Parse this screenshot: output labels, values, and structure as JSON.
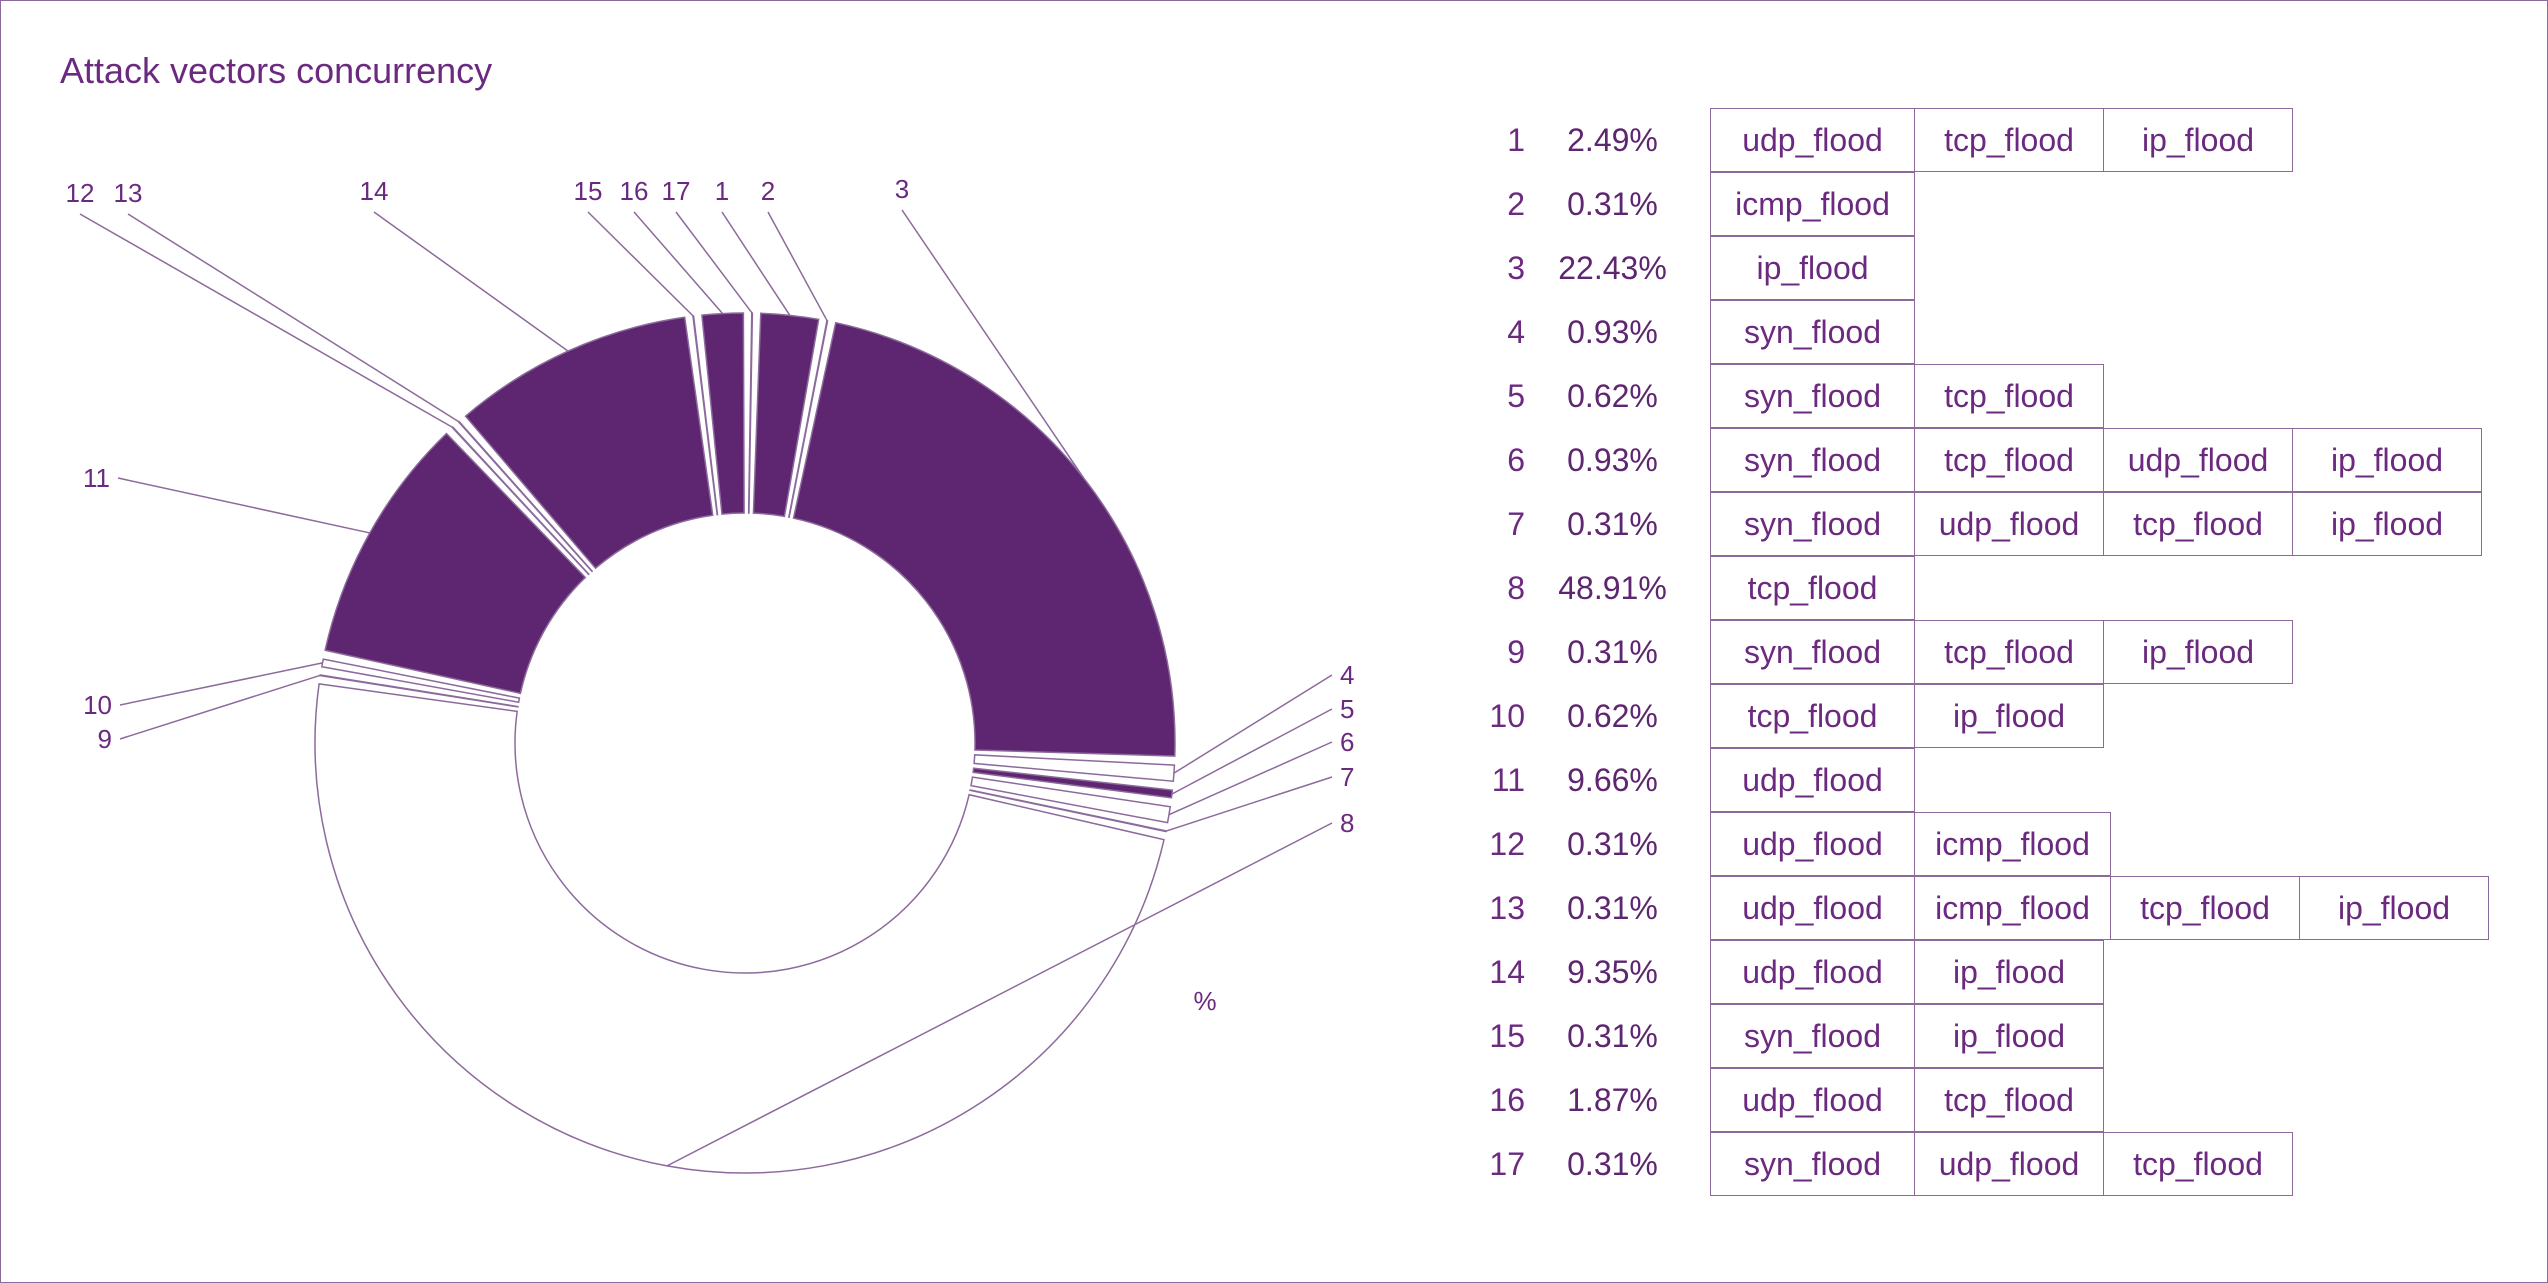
{
  "title": "Attack vectors concurrency",
  "unit_label": "%",
  "colors": {
    "fill": "#5e2570",
    "stroke": "#8c6a9c",
    "text": "#6b2a7f"
  },
  "chart_data": {
    "type": "pie",
    "title": "Attack vectors concurrency",
    "donut": true,
    "unit": "%",
    "categories": [
      "1",
      "2",
      "3",
      "4",
      "5",
      "6",
      "7",
      "8",
      "9",
      "10",
      "11",
      "12",
      "13",
      "14",
      "15",
      "16",
      "17"
    ],
    "values": [
      2.49,
      0.31,
      22.43,
      0.93,
      0.62,
      0.93,
      0.31,
      48.91,
      0.31,
      0.62,
      9.66,
      0.31,
      0.31,
      9.35,
      0.31,
      1.87,
      0.31
    ],
    "filled": [
      true,
      false,
      true,
      false,
      true,
      false,
      true,
      false,
      true,
      false,
      true,
      false,
      true,
      true,
      false,
      true,
      false
    ],
    "vectors": [
      [
        "udp_flood",
        "tcp_flood",
        "ip_flood"
      ],
      [
        "icmp_flood"
      ],
      [
        "ip_flood"
      ],
      [
        "syn_flood"
      ],
      [
        "syn_flood",
        "tcp_flood"
      ],
      [
        "syn_flood",
        "tcp_flood",
        "udp_flood",
        "ip_flood"
      ],
      [
        "syn_flood",
        "udp_flood",
        "tcp_flood",
        "ip_flood"
      ],
      [
        "tcp_flood"
      ],
      [
        "syn_flood",
        "tcp_flood",
        "ip_flood"
      ],
      [
        "tcp_flood",
        "ip_flood"
      ],
      [
        "udp_flood"
      ],
      [
        "udp_flood",
        "icmp_flood"
      ],
      [
        "udp_flood",
        "icmp_flood",
        "tcp_flood",
        "ip_flood"
      ],
      [
        "udp_flood",
        "ip_flood"
      ],
      [
        "syn_flood",
        "ip_flood"
      ],
      [
        "udp_flood",
        "tcp_flood"
      ],
      [
        "syn_flood",
        "udp_flood",
        "tcp_flood"
      ]
    ],
    "percent_labels": [
      "2.49%",
      "0.31%",
      "22.43%",
      "0.93%",
      "0.62%",
      "0.93%",
      "0.31%",
      "48.91%",
      "0.31%",
      "0.62%",
      "9.66%",
      "0.31%",
      "0.31%",
      "9.35%",
      "0.31%",
      "1.87%",
      "0.31%"
    ]
  }
}
